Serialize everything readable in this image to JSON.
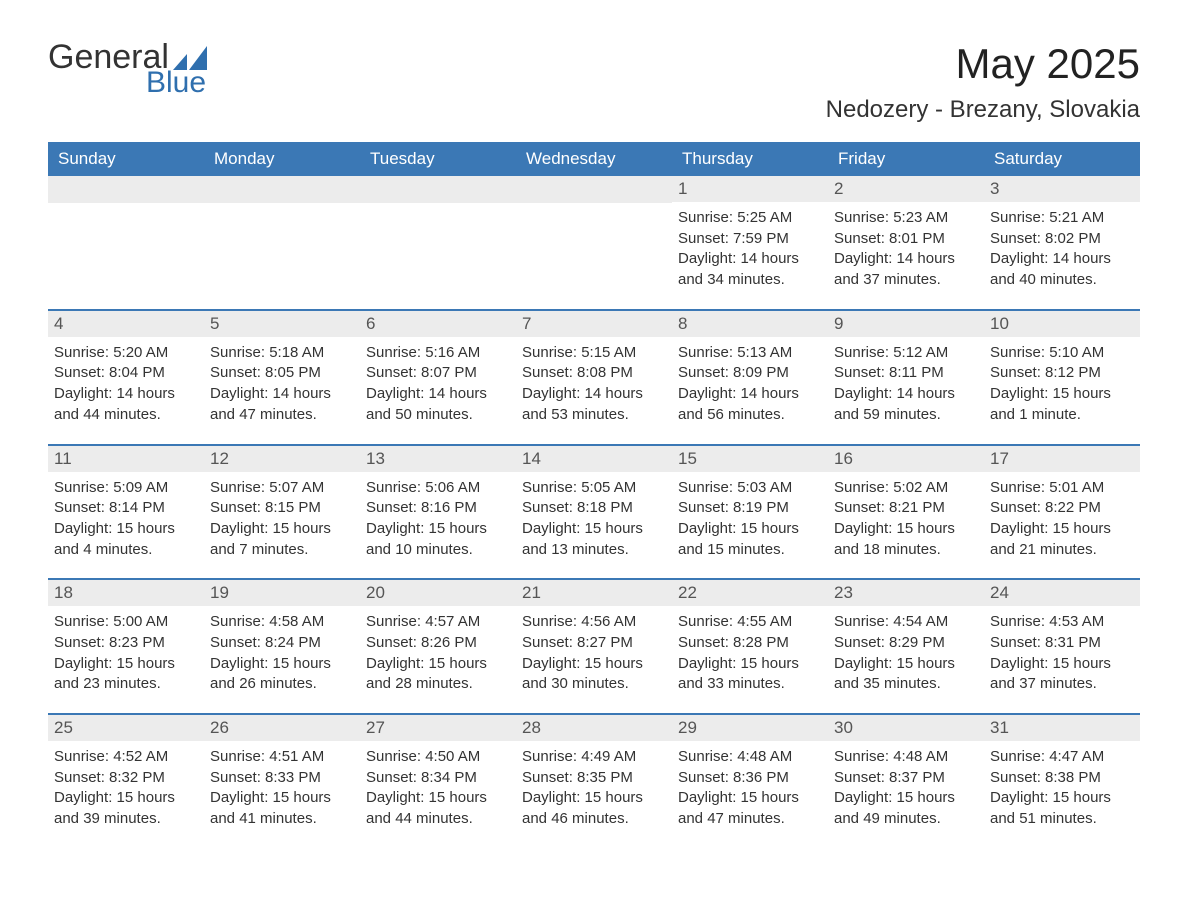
{
  "logo": {
    "general": "General",
    "blue": "Blue"
  },
  "title": "May 2025",
  "location": "Nedozery - Brezany, Slovakia",
  "colors": {
    "header_bg": "#3b78b5",
    "header_text": "#ffffff",
    "daynum_bg": "#ececec",
    "week_border": "#3b78b5",
    "text": "#333333",
    "logo_blue": "#2f6fae"
  },
  "dow": [
    "Sunday",
    "Monday",
    "Tuesday",
    "Wednesday",
    "Thursday",
    "Friday",
    "Saturday"
  ],
  "weeks": [
    [
      null,
      null,
      null,
      null,
      {
        "n": "1",
        "sr": "5:25 AM",
        "ss": "7:59 PM",
        "dl": "14 hours and 34 minutes."
      },
      {
        "n": "2",
        "sr": "5:23 AM",
        "ss": "8:01 PM",
        "dl": "14 hours and 37 minutes."
      },
      {
        "n": "3",
        "sr": "5:21 AM",
        "ss": "8:02 PM",
        "dl": "14 hours and 40 minutes."
      }
    ],
    [
      {
        "n": "4",
        "sr": "5:20 AM",
        "ss": "8:04 PM",
        "dl": "14 hours and 44 minutes."
      },
      {
        "n": "5",
        "sr": "5:18 AM",
        "ss": "8:05 PM",
        "dl": "14 hours and 47 minutes."
      },
      {
        "n": "6",
        "sr": "5:16 AM",
        "ss": "8:07 PM",
        "dl": "14 hours and 50 minutes."
      },
      {
        "n": "7",
        "sr": "5:15 AM",
        "ss": "8:08 PM",
        "dl": "14 hours and 53 minutes."
      },
      {
        "n": "8",
        "sr": "5:13 AM",
        "ss": "8:09 PM",
        "dl": "14 hours and 56 minutes."
      },
      {
        "n": "9",
        "sr": "5:12 AM",
        "ss": "8:11 PM",
        "dl": "14 hours and 59 minutes."
      },
      {
        "n": "10",
        "sr": "5:10 AM",
        "ss": "8:12 PM",
        "dl": "15 hours and 1 minute."
      }
    ],
    [
      {
        "n": "11",
        "sr": "5:09 AM",
        "ss": "8:14 PM",
        "dl": "15 hours and 4 minutes."
      },
      {
        "n": "12",
        "sr": "5:07 AM",
        "ss": "8:15 PM",
        "dl": "15 hours and 7 minutes."
      },
      {
        "n": "13",
        "sr": "5:06 AM",
        "ss": "8:16 PM",
        "dl": "15 hours and 10 minutes."
      },
      {
        "n": "14",
        "sr": "5:05 AM",
        "ss": "8:18 PM",
        "dl": "15 hours and 13 minutes."
      },
      {
        "n": "15",
        "sr": "5:03 AM",
        "ss": "8:19 PM",
        "dl": "15 hours and 15 minutes."
      },
      {
        "n": "16",
        "sr": "5:02 AM",
        "ss": "8:21 PM",
        "dl": "15 hours and 18 minutes."
      },
      {
        "n": "17",
        "sr": "5:01 AM",
        "ss": "8:22 PM",
        "dl": "15 hours and 21 minutes."
      }
    ],
    [
      {
        "n": "18",
        "sr": "5:00 AM",
        "ss": "8:23 PM",
        "dl": "15 hours and 23 minutes."
      },
      {
        "n": "19",
        "sr": "4:58 AM",
        "ss": "8:24 PM",
        "dl": "15 hours and 26 minutes."
      },
      {
        "n": "20",
        "sr": "4:57 AM",
        "ss": "8:26 PM",
        "dl": "15 hours and 28 minutes."
      },
      {
        "n": "21",
        "sr": "4:56 AM",
        "ss": "8:27 PM",
        "dl": "15 hours and 30 minutes."
      },
      {
        "n": "22",
        "sr": "4:55 AM",
        "ss": "8:28 PM",
        "dl": "15 hours and 33 minutes."
      },
      {
        "n": "23",
        "sr": "4:54 AM",
        "ss": "8:29 PM",
        "dl": "15 hours and 35 minutes."
      },
      {
        "n": "24",
        "sr": "4:53 AM",
        "ss": "8:31 PM",
        "dl": "15 hours and 37 minutes."
      }
    ],
    [
      {
        "n": "25",
        "sr": "4:52 AM",
        "ss": "8:32 PM",
        "dl": "15 hours and 39 minutes."
      },
      {
        "n": "26",
        "sr": "4:51 AM",
        "ss": "8:33 PM",
        "dl": "15 hours and 41 minutes."
      },
      {
        "n": "27",
        "sr": "4:50 AM",
        "ss": "8:34 PM",
        "dl": "15 hours and 44 minutes."
      },
      {
        "n": "28",
        "sr": "4:49 AM",
        "ss": "8:35 PM",
        "dl": "15 hours and 46 minutes."
      },
      {
        "n": "29",
        "sr": "4:48 AM",
        "ss": "8:36 PM",
        "dl": "15 hours and 47 minutes."
      },
      {
        "n": "30",
        "sr": "4:48 AM",
        "ss": "8:37 PM",
        "dl": "15 hours and 49 minutes."
      },
      {
        "n": "31",
        "sr": "4:47 AM",
        "ss": "8:38 PM",
        "dl": "15 hours and 51 minutes."
      }
    ]
  ],
  "labels": {
    "sunrise": "Sunrise: ",
    "sunset": "Sunset: ",
    "daylight": "Daylight: "
  }
}
